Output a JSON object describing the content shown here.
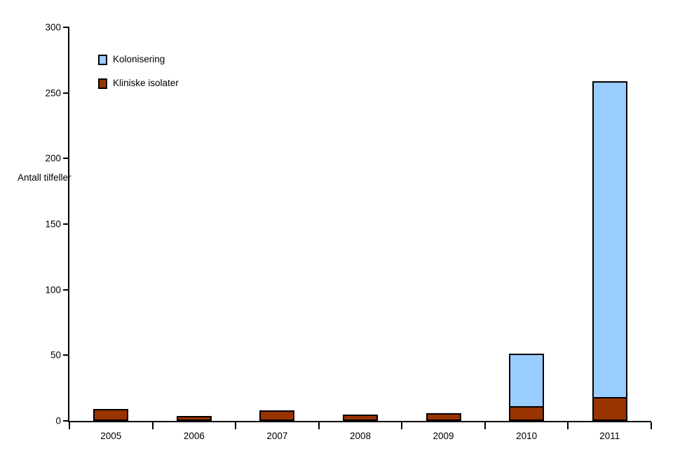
{
  "chart_data": {
    "type": "bar",
    "stacked": true,
    "title": "",
    "ylabel": "Antall tilfeller",
    "xlabel": "",
    "categories": [
      "2005",
      "2006",
      "2007",
      "2008",
      "2009",
      "2010",
      "2011"
    ],
    "series": [
      {
        "name": "Kliniske isolater",
        "color": "#993300",
        "values": [
          9,
          4,
          8,
          5,
          6,
          11,
          18
        ]
      },
      {
        "name": "Kolonisering",
        "color": "#99CCFF",
        "values": [
          0,
          0,
          0,
          0,
          0,
          41,
          242
        ]
      }
    ],
    "totals": [
      9,
      4,
      8,
      5,
      6,
      52,
      260
    ],
    "ylim": [
      0,
      300
    ],
    "yticks": [
      0,
      50,
      100,
      150,
      200,
      250,
      300
    ],
    "grid": false,
    "legend_position": "top-left-inside",
    "legend_order": [
      "Kolonisering",
      "Kliniske isolater"
    ],
    "colors": {
      "background": "#FFFFFF",
      "axis": "#000000",
      "bar_border": "#000000",
      "kolonisering": "#99CCFF",
      "kliniske_isolater": "#993300"
    }
  }
}
